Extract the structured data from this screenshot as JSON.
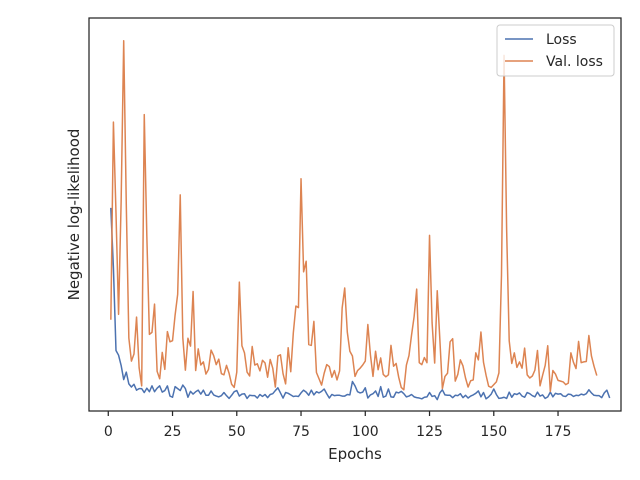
{
  "chart_data": {
    "type": "line",
    "title": "",
    "xlabel": "Epochs",
    "ylabel": "Negative log-likelihood",
    "xlim": [
      -7.5,
      199.5
    ],
    "ylim": [
      0,
      100
    ],
    "show_y_ticks": false,
    "grid": false,
    "legend_position": "top-right",
    "x_ticks": [
      0,
      25,
      50,
      75,
      100,
      125,
      150,
      175
    ],
    "x_tick_labels": [
      "0",
      "25",
      "50",
      "75",
      "100",
      "125",
      "150",
      "175"
    ],
    "series": [
      {
        "name": "Loss",
        "color": "#4c72b0",
        "x_start": 1,
        "values": [
          51.5,
          36.4,
          15.4,
          14.2,
          11.6,
          8.0,
          9.9,
          6.9,
          6.1,
          6.8,
          5.3,
          5.7,
          5.7,
          4.7,
          5.8,
          4.9,
          6.4,
          4.9,
          5.8,
          6.4,
          4.8,
          5.2,
          6.4,
          3.8,
          3.5,
          6.2,
          5.7,
          5.2,
          6.6,
          5.7,
          3.5,
          5.0,
          4.3,
          4.9,
          5.3,
          4.3,
          5.3,
          4.0,
          4.0,
          5.1,
          4.1,
          3.8,
          3.6,
          3.9,
          4.7,
          3.9,
          3.2,
          4.0,
          4.9,
          5.2,
          3.8,
          4.3,
          4.4,
          3.2,
          4.0,
          3.9,
          3.9,
          3.3,
          4.2,
          3.7,
          4.2,
          3.4,
          4.2,
          4.4,
          5.2,
          5.9,
          4.6,
          3.3,
          4.7,
          4.5,
          4.1,
          3.7,
          3.8,
          3.7,
          4.6,
          5.3,
          4.8,
          4.0,
          5.3,
          4.1,
          4.9,
          4.6,
          5.0,
          5.6,
          4.4,
          3.3,
          4.2,
          3.9,
          4.0,
          4.0,
          3.8,
          3.8,
          4.2,
          4.1,
          7.5,
          6.4,
          4.9,
          4.6,
          4.8,
          5.9,
          3.3,
          4.1,
          4.4,
          5.1,
          3.7,
          6.2,
          3.5,
          3.8,
          5.6,
          3.6,
          3.5,
          4.8,
          4.6,
          5.0,
          4.4,
          3.6,
          3.8,
          4.2,
          3.6,
          3.4,
          3.3,
          3.1,
          3.5,
          3.6,
          4.7,
          3.7,
          3.9,
          2.9,
          4.6,
          5.4,
          4.1,
          4.0,
          4.0,
          3.4,
          4.0,
          3.9,
          4.4,
          3.4,
          4.0,
          3.3,
          3.8,
          4.1,
          4.5,
          5.1,
          3.6,
          4.7,
          3.1,
          3.6,
          4.3,
          5.6,
          4.2,
          3.2,
          3.3,
          3.5,
          3.2,
          4.8,
          3.5,
          4.4,
          4.2,
          4.6,
          3.8,
          3.5,
          4.7,
          4.4,
          3.9,
          3.6,
          4.8,
          3.8,
          4.1,
          3.2,
          3.6,
          4.8,
          3.6,
          4.5,
          4.3,
          4.4,
          3.8,
          3.7,
          4.3,
          4.2,
          3.7,
          4.0,
          3.9,
          4.3,
          4.1,
          4.4,
          5.4,
          4.6,
          4.0,
          3.9,
          3.9,
          3.4,
          4.6,
          5.3,
          3.5
        ]
      },
      {
        "name": "Val. loss",
        "color": "#dd8452",
        "x_start": 1,
        "values": [
          23.4,
          73.5,
          50.4,
          24.6,
          53.2,
          94.2,
          52.7,
          18.6,
          12.7,
          14.5,
          23.9,
          11.0,
          6.4,
          75.4,
          44.5,
          19.5,
          20.0,
          27.2,
          10.1,
          8.2,
          14.9,
          10.6,
          20.2,
          17.6,
          17.9,
          24.4,
          29.7,
          55.0,
          18.6,
          10.4,
          18.5,
          16.5,
          30.4,
          10.3,
          15.8,
          11.7,
          12.5,
          9.4,
          10.6,
          15.5,
          14.1,
          11.8,
          13.2,
          9.5,
          9.2,
          11.6,
          9.6,
          6.8,
          6.0,
          9.9,
          32.8,
          16.6,
          14.8,
          9.9,
          8.9,
          16.4,
          11.7,
          12.0,
          10.2,
          12.9,
          12.2,
          8.6,
          13.1,
          10.9,
          6.1,
          14.0,
          14.3,
          9.5,
          6.9,
          16.1,
          10.0,
          19.9,
          26.7,
          26.3,
          59.1,
          35.4,
          38.1,
          16.9,
          16.7,
          22.8,
          9.8,
          8.2,
          6.6,
          9.6,
          11.8,
          11.3,
          8.6,
          10.3,
          7.9,
          10.2,
          26.2,
          31.3,
          20.1,
          15.2,
          14.0,
          8.8,
          10.3,
          10.9,
          11.7,
          12.7,
          22.0,
          14.3,
          8.8,
          15.2,
          10.5,
          13.5,
          9.3,
          8.7,
          9.2,
          16.7,
          11.4,
          12.1,
          8.6,
          6.0,
          5.4,
          11.7,
          14.1,
          19.3,
          24.0,
          31.0,
          12.3,
          11.8,
          13.6,
          12.3,
          44.7,
          22.4,
          12.2,
          30.6,
          18.4,
          5.7,
          8.8,
          9.6,
          17.6,
          18.4,
          7.6,
          9.3,
          13.0,
          11.5,
          8.4,
          6.1,
          7.7,
          7.9,
          14.8,
          13.0,
          20.1,
          12.4,
          9.1,
          6.3,
          6.0,
          6.7,
          7.4,
          9.7,
          34.6,
          90.5,
          46.2,
          17.9,
          12.1,
          14.8,
          11.1,
          12.5,
          10.9,
          16.0,
          9.2,
          8.4,
          8.9,
          10.4,
          15.4,
          6.4,
          9.1,
          11.6,
          16.6,
          5.0,
          10.3,
          9.4,
          7.8,
          7.6,
          7.4,
          6.7,
          7.1,
          14.8,
          12.4,
          10.8,
          17.7,
          12.3,
          12.5,
          12.6,
          19.2,
          14.0,
          11.4,
          9.2
        ]
      }
    ]
  }
}
